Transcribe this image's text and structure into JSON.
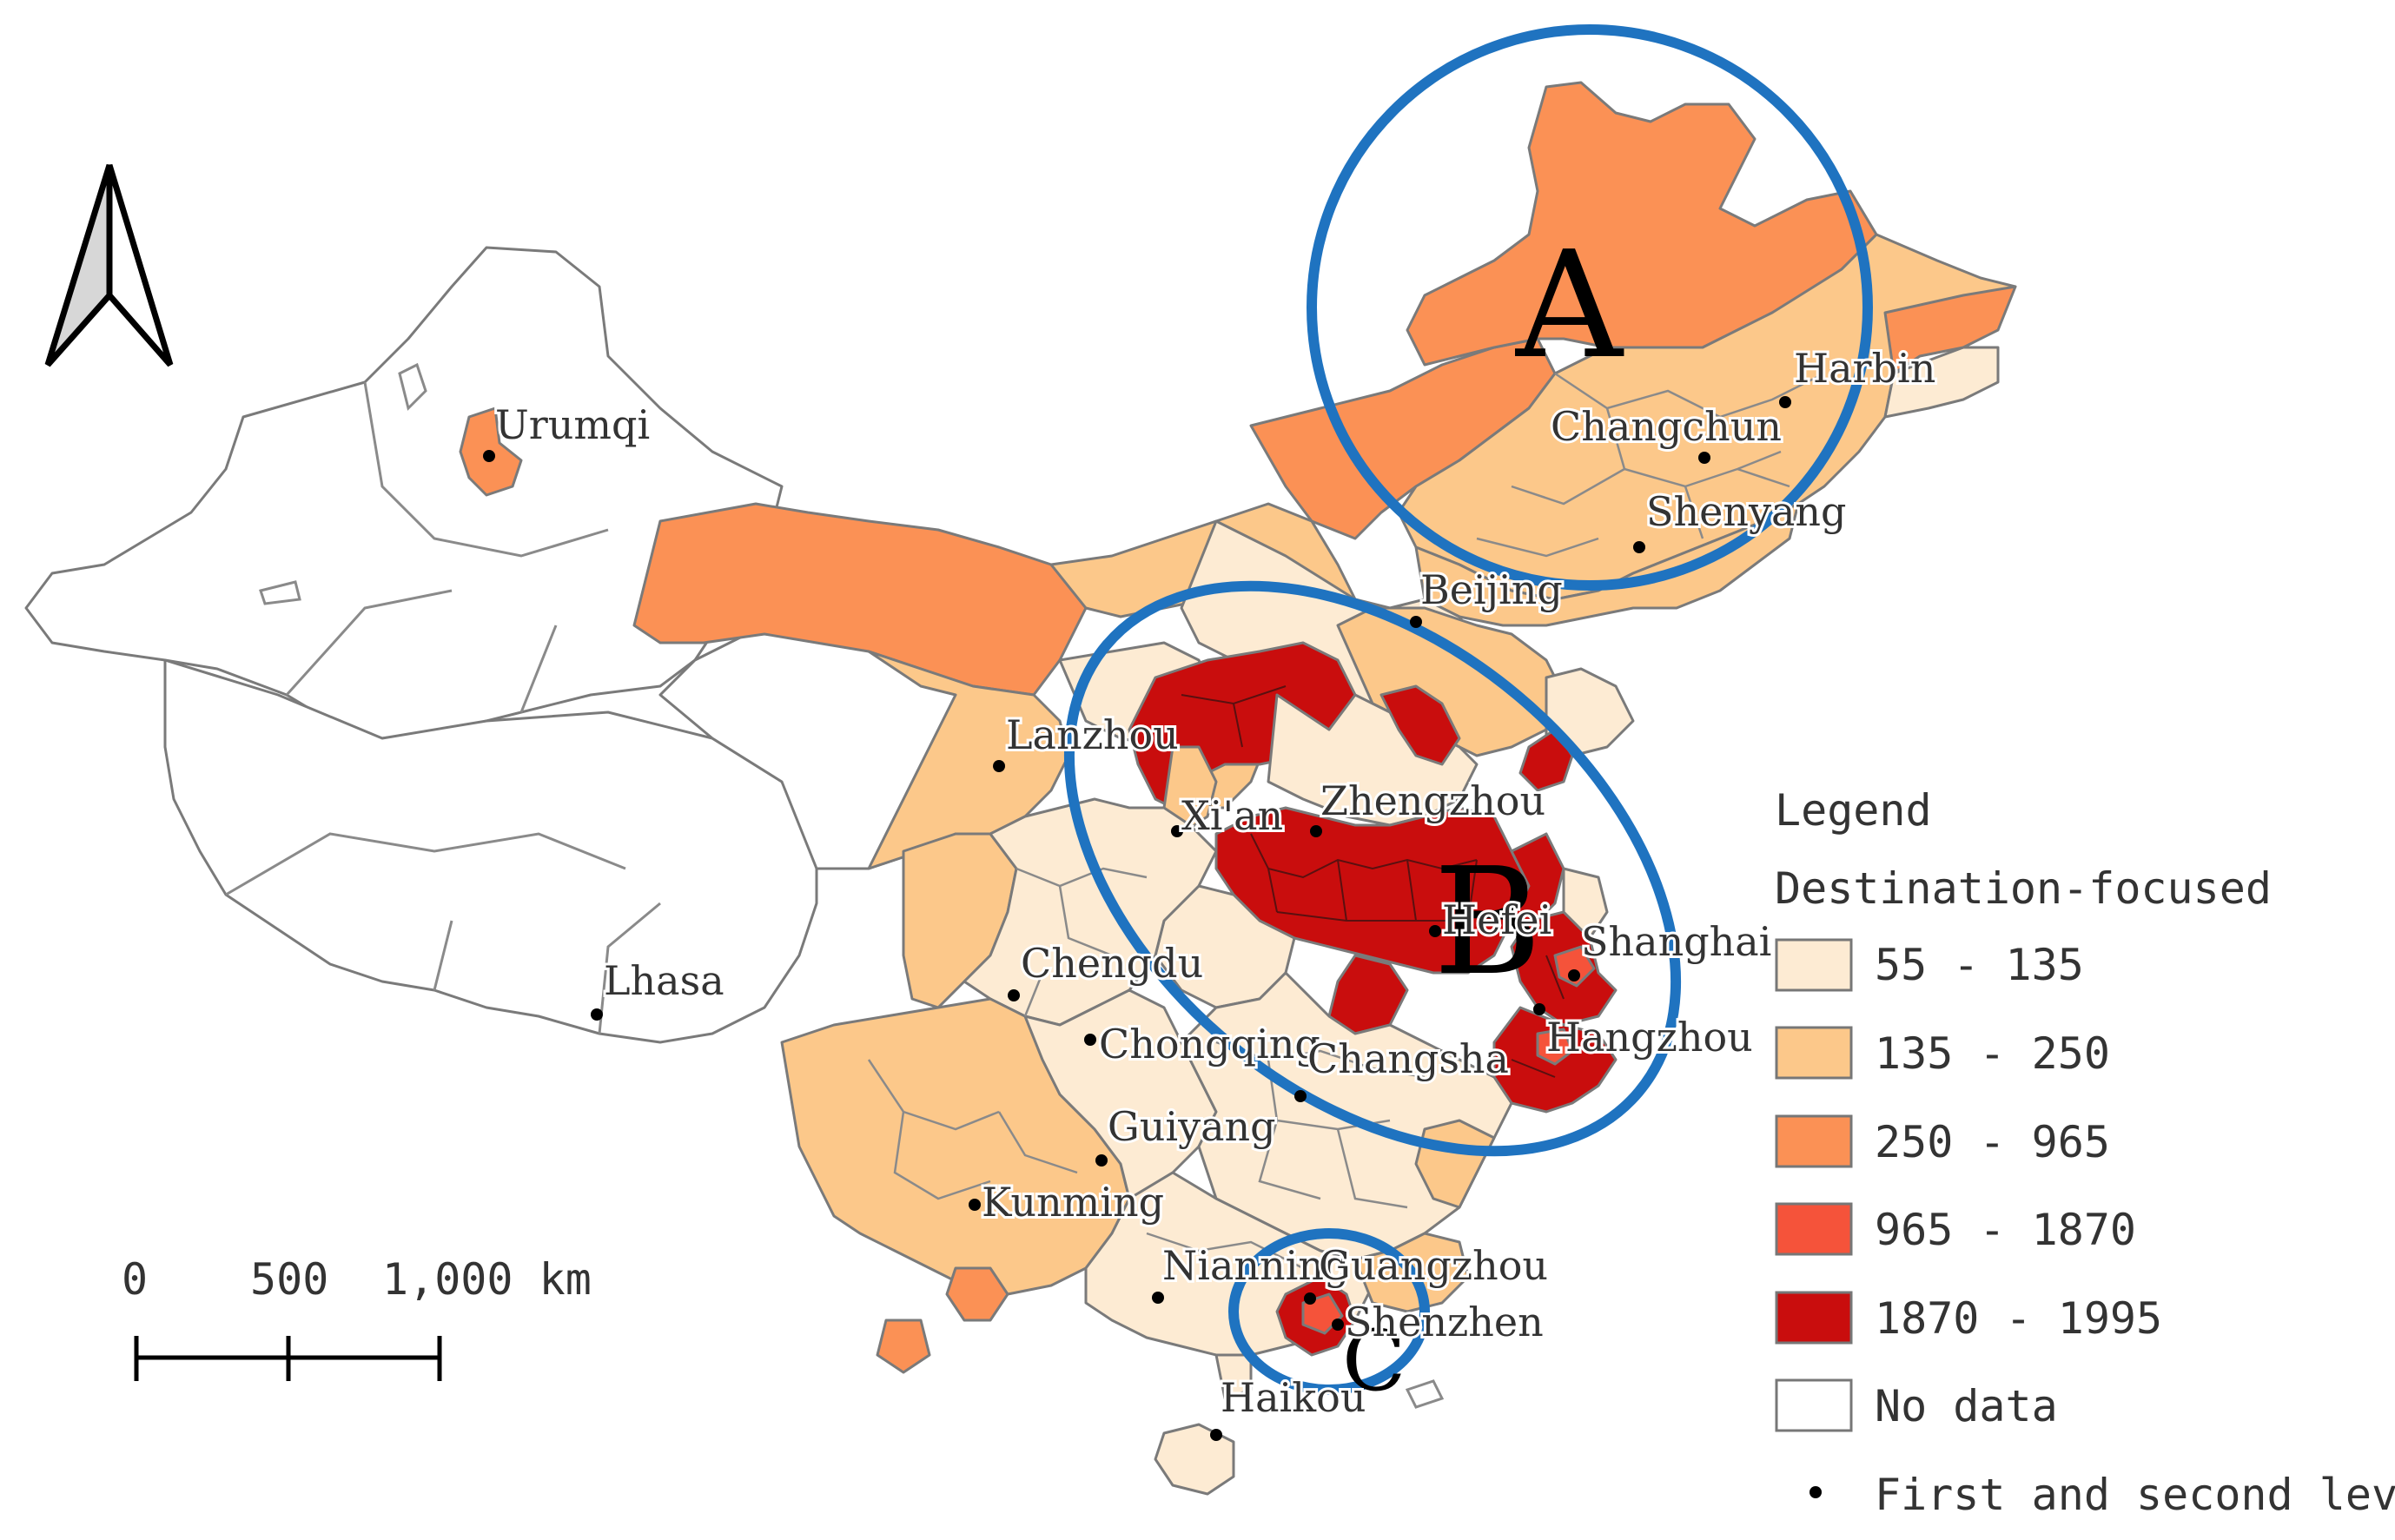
{
  "colors": {
    "c1": "#fdebd3",
    "c2": "#fcc88a",
    "c3": "#fb9155",
    "c4": "#f5533a",
    "c5": "#c90d0d",
    "nodata": "#ffffff",
    "circle": "#1f73c0"
  },
  "north_arrow": {
    "icon": "north-arrow-icon"
  },
  "cities": [
    {
      "name": "Urumqi"
    },
    {
      "name": "Harbin"
    },
    {
      "name": "Changchun"
    },
    {
      "name": "Shenyang"
    },
    {
      "name": "Beijing"
    },
    {
      "name": "Lanzhou"
    },
    {
      "name": "Xi'an"
    },
    {
      "name": "Zhengzhou"
    },
    {
      "name": "Hefei"
    },
    {
      "name": "Shanghai"
    },
    {
      "name": "Hangzhou"
    },
    {
      "name": "Chengdu"
    },
    {
      "name": "Chongqing"
    },
    {
      "name": "Changsha"
    },
    {
      "name": "Lhasa"
    },
    {
      "name": "Guiyang"
    },
    {
      "name": "Kunming"
    },
    {
      "name": "Nianning"
    },
    {
      "name": "Guangzhou"
    },
    {
      "name": "Shenzhen"
    },
    {
      "name": "Haikou"
    }
  ],
  "regions": {
    "a": "A",
    "b": "B",
    "c": "C"
  },
  "scale_bar": {
    "tick0": "0",
    "tick1": "500",
    "tick2": "1,000 km"
  },
  "legend": {
    "title": "Legend",
    "subtitle": "Destination-focused",
    "classes": [
      {
        "label": "55 - 135"
      },
      {
        "label": "135 - 250"
      },
      {
        "label": "250 - 965"
      },
      {
        "label": "965 - 1870"
      },
      {
        "label": "1870 - 1995"
      },
      {
        "label": "No data"
      }
    ],
    "points_label": "First and second level"
  }
}
